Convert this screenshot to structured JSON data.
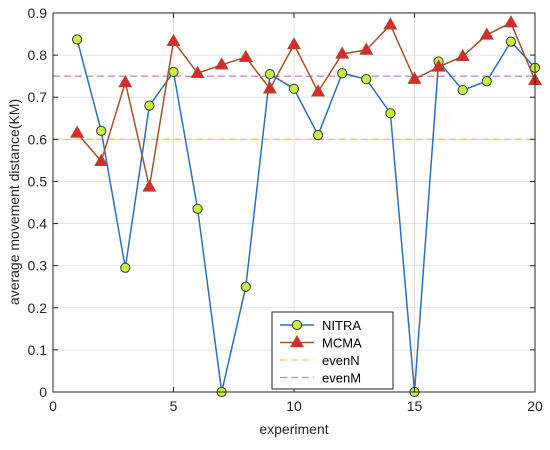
{
  "chart_data": {
    "type": "line",
    "xlabel": "experiment",
    "ylabel": "average movement distance(KM)",
    "xlim": [
      0,
      20
    ],
    "ylim": [
      0,
      0.9
    ],
    "x_ticks": [
      0,
      5,
      10,
      15,
      20
    ],
    "y_ticks": [
      0,
      0.1,
      0.2,
      0.3,
      0.4,
      0.5,
      0.6,
      0.7,
      0.8,
      0.9
    ],
    "x_tick_labels": [
      "0",
      "5",
      "10",
      "15",
      "20"
    ],
    "y_tick_labels": [
      "0",
      "0.1",
      "0.2",
      "0.3",
      "0.4",
      "0.5",
      "0.6",
      "0.7",
      "0.8",
      "0.9"
    ],
    "grid": true,
    "legend_position": "bottom-center",
    "x": [
      1,
      2,
      3,
      4,
      5,
      6,
      7,
      8,
      9,
      10,
      11,
      12,
      13,
      14,
      15,
      16,
      17,
      18,
      19,
      20
    ],
    "series": [
      {
        "name": "NITRA",
        "color": "#2e6fb8",
        "marker": "circle",
        "marker_fill": "#c8f03c",
        "values": [
          0.837,
          0.62,
          0.295,
          0.68,
          0.76,
          0.435,
          0.0,
          0.25,
          0.755,
          0.72,
          0.61,
          0.757,
          0.743,
          0.662,
          0.0,
          0.785,
          0.717,
          0.738,
          0.832,
          0.77
        ]
      },
      {
        "name": "MCMA",
        "color": "#a0522d",
        "marker": "triangle",
        "marker_fill": "#e0262a",
        "values": [
          0.615,
          0.548,
          0.735,
          0.487,
          0.833,
          0.757,
          0.777,
          0.795,
          0.72,
          0.825,
          0.713,
          0.803,
          0.812,
          0.872,
          0.743,
          0.772,
          0.797,
          0.848,
          0.877,
          0.74
        ]
      },
      {
        "name": "evenN",
        "color": "#f2c46e",
        "style": "dashed",
        "value": 0.6
      },
      {
        "name": "evenM",
        "color": "#cc88cc",
        "style": "dashed",
        "value": 0.75
      }
    ]
  }
}
